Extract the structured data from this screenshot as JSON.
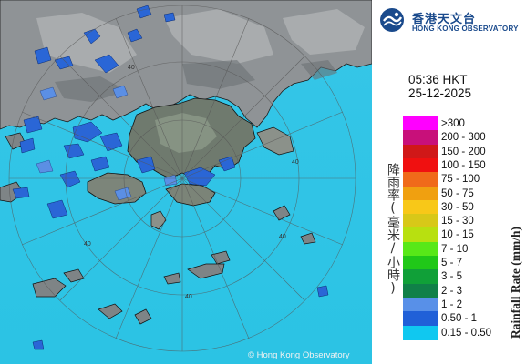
{
  "logo": {
    "name_cn": "香港天文台",
    "name_en": "HONG KONG OBSERVATORY"
  },
  "timestamp": {
    "time": "05:36 HKT",
    "date": "25-12-2025"
  },
  "legend": {
    "title_cn": "降雨率(毫米/小時)",
    "title_en": "Rainfall Rate (mm/h)",
    "items": [
      {
        "label": ">300",
        "color": "#ff00ff"
      },
      {
        "label": "200 - 300",
        "color": "#c8107a"
      },
      {
        "label": "150 - 200",
        "color": "#d01818"
      },
      {
        "label": "100 - 150",
        "color": "#f01010"
      },
      {
        "label": "75 - 100",
        "color": "#f06a1a"
      },
      {
        "label": "50 - 75",
        "color": "#f0a010"
      },
      {
        "label": "30 - 50",
        "color": "#f8c818"
      },
      {
        "label": "15 - 30",
        "color": "#d8c818"
      },
      {
        "label": "10 - 15",
        "color": "#b8e010"
      },
      {
        "label": "7 - 10",
        "color": "#58e818"
      },
      {
        "label": "5 - 7",
        "color": "#20c818"
      },
      {
        "label": "3 - 5",
        "color": "#10a038"
      },
      {
        "label": "2 - 3",
        "color": "#108048"
      },
      {
        "label": "1 - 2",
        "color": "#5890e8"
      },
      {
        "label": "0.50 - 1",
        "color": "#2060d8"
      },
      {
        "label": "0.15 - 0.50",
        "color": "#10c8f0"
      }
    ]
  },
  "map": {
    "range_labels": [
      "40",
      "40",
      "40",
      "40",
      "40"
    ],
    "copyright": "© Hong Kong Observatory",
    "colors": {
      "sea": "#2ec7e6",
      "land": "#9a9a9a",
      "light_rain": "#2060d8"
    }
  }
}
